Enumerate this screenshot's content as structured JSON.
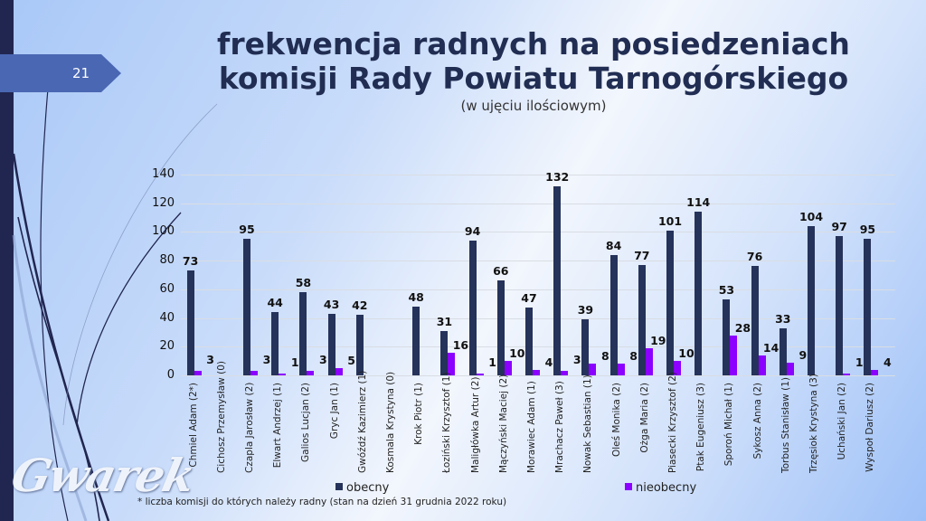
{
  "slide": {
    "number": "21",
    "title_line1": "frekwencja radnych na posiedzeniach",
    "title_line2": "komisji Rady Powiatu Tarnogórskiego",
    "subtitle": "(w ujęciu ilościowym)",
    "footnote": "* liczba komisji do których należy radny (stan na dzień 31 grudnia 2022 roku)",
    "logo_text": "Gwarek"
  },
  "colors": {
    "obecny": "#25325a",
    "nieobecny": "#8b00ff",
    "sidebar": "#212650",
    "slide_tab": "#4a67b3"
  },
  "legend": {
    "obecny": "obecny",
    "nieobecny": "nieobecny"
  },
  "chart_data": {
    "type": "bar",
    "title": "frekwencja radnych na posiedzeniach komisji Rady Powiatu Tarnogórskiego",
    "subtitle": "(w ujęciu ilościowym)",
    "xlabel": "",
    "ylabel": "",
    "ylim": [
      0,
      140
    ],
    "yticks": [
      "0",
      "20",
      "40",
      "60",
      "80",
      "100",
      "120",
      "140"
    ],
    "grid": true,
    "legend_position": "bottom",
    "categories": [
      "Chmiel Adam (2*)",
      "Cichosz Przemysław (0)",
      "Czapla Jarosław (2)",
      "Elwart Andrzej (1)",
      "Galios Lucjan (2)",
      "Gryc Jan (1)",
      "Gwóźdź Kazimierz (1)",
      "Kosmala Krystyna (0)",
      "Krok Piotr (1)",
      "Łoziński Krzysztof (1)",
      "Maligłówka Artur (2)",
      "Mączyński Maciej (2)",
      "Morawiec Adam (1)",
      "Mrachacz Paweł (3)",
      "Nowak Sebastian (1)",
      "Oleś Monika (2)",
      "Ożga Maria (2)",
      "Piasecki Krzysztof (2)",
      "Ptak Eugeniusz (3)",
      "Sporoń Michał (1)",
      "Sykosz Anna (2)",
      "Torbus Stanisław (1)",
      "Trzęsiok Krystyna (3)",
      "Uchański Jan (2)",
      "Wyspoł Dariusz (2)"
    ],
    "series": [
      {
        "name": "obecny",
        "values": [
          73,
          null,
          95,
          44,
          58,
          43,
          42,
          null,
          48,
          31,
          94,
          66,
          47,
          132,
          39,
          84,
          77,
          101,
          114,
          53,
          76,
          33,
          104,
          97,
          95
        ]
      },
      {
        "name": "nieobecny",
        "values": [
          3,
          null,
          3,
          1,
          3,
          5,
          null,
          null,
          null,
          16,
          1,
          10,
          4,
          3,
          8,
          8,
          19,
          10,
          null,
          28,
          14,
          9,
          null,
          1,
          4
        ]
      }
    ]
  }
}
